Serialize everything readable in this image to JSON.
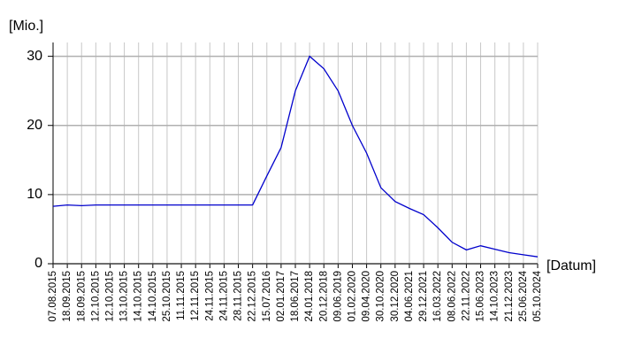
{
  "chart_data": {
    "type": "line",
    "y_label": "[Mio.]",
    "x_label": "[Datum]",
    "categories": [
      "07.08.2015",
      "18.09.2015",
      "18.09.2015",
      "12.10.2015",
      "12.10.2015",
      "13.10.2015",
      "14.10.2015",
      "14.10.2015",
      "25.10.2015",
      "11.11.2015",
      "12.11.2015",
      "24.11.2015",
      "24.11.2015",
      "28.11.2015",
      "22.12.2015",
      "15.07.2016",
      "02.01.2017",
      "18.06.2017",
      "24.01.2018",
      "20.12.2018",
      "09.06.2019",
      "01.02.2020",
      "09.04.2020",
      "30.10.2020",
      "30.12.2020",
      "04.06.2021",
      "29.12.2021",
      "16.03.2022",
      "08.06.2022",
      "22.11.2022",
      "15.06.2023",
      "14.10.2023",
      "21.12.2023",
      "25.06.2024",
      "05.10.2024"
    ],
    "values": [
      8.3,
      8.5,
      8.4,
      8.5,
      8.5,
      8.5,
      8.5,
      8.5,
      8.5,
      8.5,
      8.5,
      8.5,
      8.5,
      8.5,
      8.5,
      12.7,
      16.8,
      25,
      30,
      28.2,
      25,
      20,
      16,
      11,
      9,
      8,
      7.1,
      5.2,
      3.1,
      2.0,
      2.6,
      2.1,
      1.6,
      1.3,
      1.0
    ],
    "color": "#0000cc",
    "ylim": [
      0,
      32
    ],
    "yticks": [
      0,
      10,
      20,
      30
    ],
    "grid": true
  }
}
